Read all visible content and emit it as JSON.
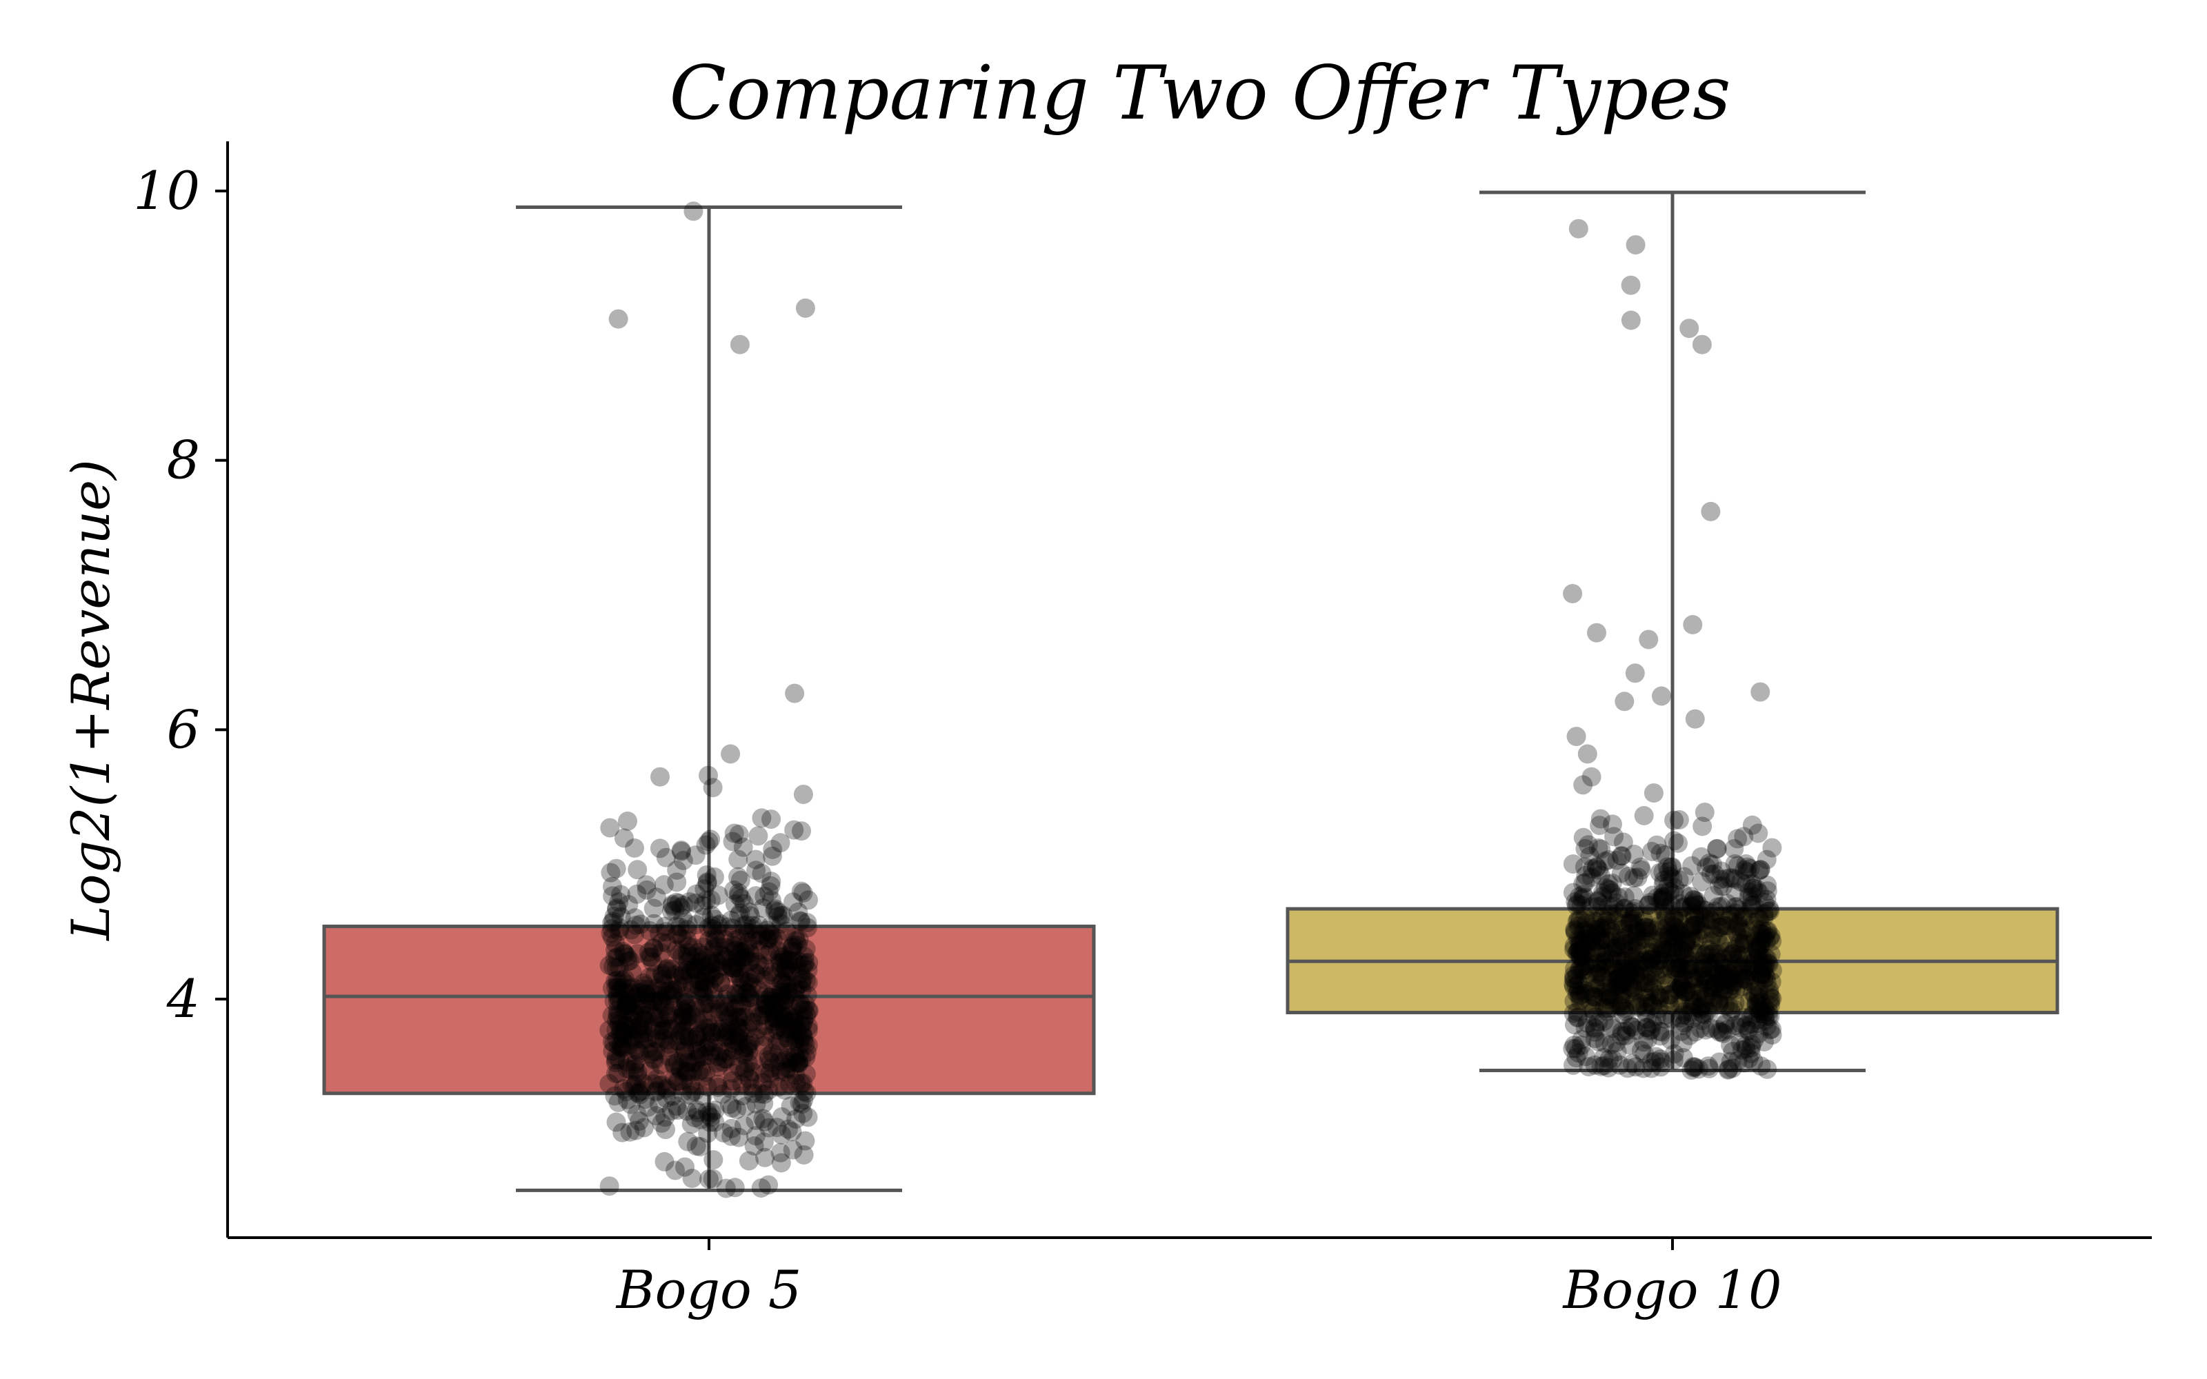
{
  "chart_data": {
    "type": "box",
    "title": "Comparing Two Offer Types",
    "xlabel": "",
    "ylabel": "Log2(1+Revenue)",
    "ylim": [
      2.3,
      10.35
    ],
    "yticks": [
      4,
      6,
      8,
      10
    ],
    "grid": false,
    "overlay": "jittered strip points",
    "categories": [
      "Bogo 5",
      "Bogo 10"
    ],
    "boxes": [
      {
        "category": "Bogo 5",
        "color": "#cd6b66",
        "min": 2.58,
        "q1": 3.3,
        "median": 4.02,
        "q3": 4.54,
        "max": 9.88,
        "outliers": [
          9.85,
          9.13,
          9.05,
          8.86,
          6.27,
          5.82,
          5.66,
          5.65,
          5.57,
          5.52
        ]
      },
      {
        "category": "Bogo 10",
        "color": "#cdb866",
        "min": 3.47,
        "q1": 3.9,
        "median": 4.28,
        "q3": 4.67,
        "max": 9.99,
        "outliers": [
          9.72,
          9.6,
          9.3,
          9.04,
          8.98,
          8.86,
          7.62,
          7.01,
          6.78,
          6.72,
          6.67,
          6.42,
          6.28,
          6.25,
          6.21,
          6.08,
          5.95,
          5.82,
          5.65,
          5.59,
          5.53
        ]
      }
    ],
    "points_range": [
      {
        "category": "Bogo 5",
        "low": 2.58,
        "high": 5.35
      },
      {
        "category": "Bogo 10",
        "low": 3.47,
        "high": 5.4
      }
    ]
  }
}
